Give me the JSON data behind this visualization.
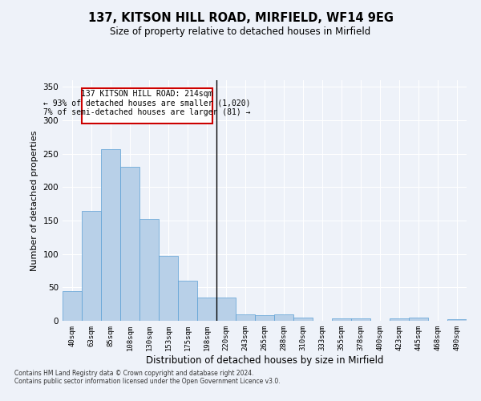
{
  "title": "137, KITSON HILL ROAD, MIRFIELD, WF14 9EG",
  "subtitle": "Size of property relative to detached houses in Mirfield",
  "xlabel": "Distribution of detached houses by size in Mirfield",
  "ylabel": "Number of detached properties",
  "categories": [
    "40sqm",
    "63sqm",
    "85sqm",
    "108sqm",
    "130sqm",
    "153sqm",
    "175sqm",
    "198sqm",
    "220sqm",
    "243sqm",
    "265sqm",
    "288sqm",
    "310sqm",
    "333sqm",
    "355sqm",
    "378sqm",
    "400sqm",
    "423sqm",
    "445sqm",
    "468sqm",
    "490sqm"
  ],
  "values": [
    45,
    165,
    257,
    230,
    153,
    97,
    60,
    35,
    35,
    10,
    9,
    10,
    5,
    0,
    4,
    4,
    0,
    4,
    5,
    0,
    3
  ],
  "bar_color": "#b8d0e8",
  "bar_edge_color": "#5a9fd4",
  "vline_x_index": 8,
  "annotation_line1": "137 KITSON HILL ROAD: 214sqm",
  "annotation_line2": "← 93% of detached houses are smaller (1,020)",
  "annotation_line3": "7% of semi-detached houses are larger (81) →",
  "annotation_box_color": "#ffffff",
  "annotation_box_edge_color": "#cc0000",
  "background_color": "#eef2f9",
  "grid_color": "#ffffff",
  "ylim": [
    0,
    360
  ],
  "yticks": [
    0,
    50,
    100,
    150,
    200,
    250,
    300,
    350
  ],
  "footer": "Contains HM Land Registry data © Crown copyright and database right 2024.\nContains public sector information licensed under the Open Government Licence v3.0."
}
